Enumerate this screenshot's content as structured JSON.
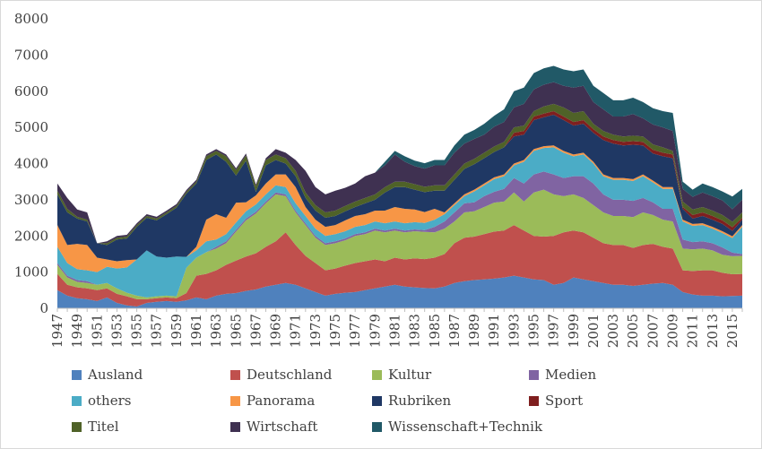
{
  "chart_data": {
    "type": "area",
    "stacked": true,
    "title": "",
    "xlabel": "",
    "ylabel": "",
    "ylim": [
      0,
      8000
    ],
    "yticks": [
      0,
      1000,
      2000,
      3000,
      4000,
      5000,
      6000,
      7000,
      8000
    ],
    "x": [
      1947,
      1948,
      1949,
      1950,
      1951,
      1952,
      1953,
      1954,
      1955,
      1956,
      1957,
      1958,
      1959,
      1960,
      1961,
      1962,
      1963,
      1964,
      1965,
      1966,
      1967,
      1968,
      1969,
      1970,
      1971,
      1972,
      1973,
      1974,
      1975,
      1976,
      1977,
      1978,
      1979,
      1980,
      1981,
      1982,
      1983,
      1984,
      1985,
      1986,
      1987,
      1988,
      1989,
      1990,
      1991,
      1992,
      1993,
      1994,
      1995,
      1996,
      1997,
      1998,
      1999,
      2000,
      2001,
      2002,
      2003,
      2004,
      2005,
      2006,
      2007,
      2008,
      2009,
      2010,
      2011,
      2012,
      2013,
      2014,
      2015,
      2016
    ],
    "xtick_labels": [
      "1947",
      "1949",
      "1951",
      "1953",
      "1955",
      "1957",
      "1959",
      "1961",
      "1963",
      "1965",
      "1967",
      "1969",
      "1971",
      "1973",
      "1975",
      "1977",
      "1979",
      "1981",
      "1983",
      "1985",
      "1987",
      "1989",
      "1991",
      "1993",
      "1995",
      "1997",
      "1999",
      "2001",
      "2003",
      "2005",
      "2007",
      "2009",
      "2011",
      "2013",
      "2015"
    ],
    "grid": false,
    "legend_position": "bottom",
    "series": [
      {
        "name": "Ausland",
        "color": "#4f81bd",
        "values": [
          500,
          350,
          280,
          250,
          200,
          300,
          150,
          80,
          50,
          150,
          180,
          200,
          180,
          220,
          300,
          250,
          350,
          400,
          420,
          480,
          520,
          600,
          650,
          700,
          650,
          550,
          450,
          350,
          400,
          430,
          450,
          500,
          550,
          600,
          650,
          600,
          580,
          560,
          550,
          600,
          700,
          750,
          780,
          800,
          820,
          850,
          900,
          850,
          800,
          780,
          650,
          700,
          850,
          800,
          750,
          700,
          650,
          650,
          620,
          650,
          680,
          700,
          650,
          450,
          380,
          350,
          350,
          330,
          340,
          350
        ]
      },
      {
        "name": "Deutschland",
        "color": "#c0504d",
        "values": [
          450,
          300,
          300,
          300,
          300,
          250,
          250,
          250,
          200,
          100,
          100,
          100,
          100,
          200,
          600,
          700,
          700,
          800,
          900,
          950,
          1000,
          1100,
          1200,
          1400,
          1100,
          900,
          800,
          700,
          700,
          750,
          800,
          800,
          800,
          700,
          750,
          750,
          800,
          800,
          850,
          900,
          1100,
          1200,
          1200,
          1250,
          1300,
          1300,
          1400,
          1300,
          1200,
          1200,
          1350,
          1400,
          1300,
          1300,
          1200,
          1100,
          1100,
          1100,
          1050,
          1100,
          1100,
          1000,
          1000,
          600,
          650,
          700,
          700,
          650,
          600,
          600
        ]
      },
      {
        "name": "Kultur",
        "color": "#9bbb59",
        "values": [
          250,
          200,
          150,
          150,
          150,
          150,
          150,
          100,
          100,
          50,
          50,
          50,
          50,
          700,
          500,
          600,
          600,
          600,
          800,
          1000,
          1100,
          1200,
          1300,
          1000,
          900,
          850,
          700,
          700,
          700,
          700,
          750,
          750,
          800,
          800,
          750,
          750,
          750,
          750,
          700,
          700,
          600,
          700,
          700,
          750,
          800,
          800,
          900,
          800,
          1200,
          1300,
          1150,
          1000,
          1000,
          950,
          900,
          850,
          800,
          800,
          850,
          900,
          800,
          750,
          750,
          600,
          600,
          600,
          550,
          500,
          500,
          500
        ]
      },
      {
        "name": "Medien",
        "color": "#8064a2",
        "values": [
          50,
          50,
          50,
          50,
          0,
          0,
          0,
          0,
          0,
          0,
          0,
          0,
          0,
          0,
          0,
          0,
          50,
          50,
          50,
          50,
          50,
          50,
          50,
          50,
          50,
          50,
          50,
          50,
          50,
          50,
          50,
          50,
          50,
          50,
          50,
          50,
          50,
          50,
          150,
          200,
          250,
          250,
          250,
          300,
          300,
          350,
          400,
          500,
          500,
          500,
          550,
          500,
          500,
          600,
          600,
          500,
          450,
          450,
          450,
          400,
          350,
          300,
          350,
          250,
          200,
          200,
          200,
          200,
          100,
          50
        ]
      },
      {
        "name": "others",
        "color": "#4bacc6",
        "values": [
          450,
          350,
          300,
          300,
          350,
          450,
          550,
          700,
          1000,
          1300,
          1100,
          1050,
          1100,
          300,
          200,
          300,
          200,
          200,
          200,
          200,
          200,
          200,
          200,
          200,
          200,
          200,
          200,
          200,
          200,
          200,
          200,
          200,
          200,
          200,
          200,
          200,
          200,
          200,
          200,
          200,
          200,
          200,
          300,
          300,
          350,
          350,
          350,
          600,
          650,
          650,
          750,
          700,
          550,
          600,
          550,
          500,
          550,
          550,
          550,
          600,
          550,
          550,
          550,
          500,
          450,
          450,
          400,
          400,
          400,
          750
        ]
      },
      {
        "name": "Panorama",
        "color": "#f79646",
        "values": [
          600,
          500,
          700,
          700,
          400,
          200,
          200,
          200,
          0,
          0,
          0,
          0,
          0,
          0,
          100,
          600,
          700,
          450,
          550,
          250,
          250,
          300,
          300,
          350,
          450,
          250,
          250,
          250,
          250,
          300,
          300,
          300,
          300,
          350,
          400,
          400,
          350,
          300,
          300,
          50,
          50,
          50,
          50,
          50,
          50,
          50,
          50,
          50,
          50,
          50,
          50,
          50,
          50,
          50,
          50,
          50,
          50,
          50,
          50,
          50,
          50,
          50,
          50,
          50,
          50,
          50,
          50,
          50,
          50,
          50
        ]
      },
      {
        "name": "Rubriken",
        "color": "#1f3864",
        "values": [
          850,
          900,
          700,
          650,
          400,
          400,
          600,
          600,
          900,
          900,
          1000,
          1200,
          1350,
          1750,
          1750,
          1650,
          1650,
          1550,
          750,
          1150,
          100,
          500,
          400,
          300,
          300,
          250,
          250,
          250,
          250,
          250,
          250,
          300,
          300,
          500,
          550,
          600,
          550,
          550,
          500,
          600,
          650,
          700,
          700,
          700,
          700,
          750,
          750,
          700,
          800,
          800,
          850,
          850,
          800,
          800,
          800,
          950,
          950,
          900,
          950,
          800,
          750,
          850,
          800,
          300,
          150,
          200,
          200,
          200,
          150,
          150
        ]
      },
      {
        "name": "Sport",
        "color": "#7f1f1f",
        "values": [
          0,
          0,
          0,
          0,
          0,
          0,
          0,
          0,
          0,
          0,
          0,
          0,
          0,
          0,
          0,
          0,
          0,
          0,
          0,
          0,
          0,
          0,
          0,
          0,
          0,
          0,
          0,
          0,
          0,
          0,
          0,
          0,
          0,
          0,
          0,
          0,
          0,
          0,
          0,
          0,
          0,
          0,
          0,
          0,
          0,
          0,
          100,
          100,
          100,
          100,
          100,
          100,
          100,
          100,
          100,
          100,
          100,
          100,
          100,
          100,
          100,
          100,
          100,
          50,
          100,
          100,
          100,
          100,
          100,
          50
        ]
      },
      {
        "name": "Titel",
        "color": "#4f6228",
        "values": [
          100,
          100,
          50,
          50,
          0,
          50,
          50,
          50,
          50,
          50,
          50,
          50,
          50,
          50,
          50,
          100,
          100,
          150,
          150,
          150,
          150,
          150,
          150,
          150,
          150,
          150,
          150,
          150,
          150,
          150,
          150,
          150,
          150,
          150,
          150,
          150,
          150,
          150,
          150,
          150,
          150,
          150,
          150,
          150,
          150,
          150,
          150,
          150,
          150,
          200,
          200,
          250,
          250,
          250,
          150,
          150,
          150,
          150,
          150,
          150,
          150,
          150,
          100,
          150,
          150,
          150,
          150,
          150,
          150,
          150
        ]
      },
      {
        "name": "Wirtschaft",
        "color": "#3f3151",
        "values": [
          200,
          300,
          200,
          200,
          0,
          50,
          50,
          50,
          50,
          50,
          50,
          50,
          50,
          50,
          50,
          50,
          50,
          50,
          50,
          50,
          50,
          50,
          150,
          150,
          300,
          600,
          500,
          500,
          550,
          500,
          500,
          600,
          600,
          600,
          750,
          550,
          500,
          500,
          550,
          550,
          600,
          550,
          550,
          500,
          550,
          550,
          550,
          600,
          600,
          600,
          600,
          600,
          700,
          700,
          600,
          600,
          500,
          550,
          600,
          500,
          550,
          550,
          550,
          350,
          350,
          400,
          400,
          400,
          350,
          350
        ]
      },
      {
        "name": "Wissenschaft+Technik",
        "color": "#215967",
        "values": [
          0,
          0,
          0,
          0,
          0,
          0,
          0,
          0,
          0,
          0,
          0,
          0,
          0,
          0,
          0,
          0,
          0,
          0,
          0,
          0,
          0,
          0,
          0,
          0,
          0,
          0,
          0,
          0,
          0,
          0,
          0,
          0,
          0,
          100,
          100,
          150,
          150,
          150,
          150,
          150,
          200,
          250,
          250,
          300,
          300,
          350,
          450,
          450,
          450,
          450,
          450,
          450,
          450,
          450,
          450,
          450,
          450,
          450,
          450,
          450,
          450,
          450,
          500,
          200,
          200,
          250,
          250,
          250,
          350,
          300
        ]
      }
    ]
  }
}
